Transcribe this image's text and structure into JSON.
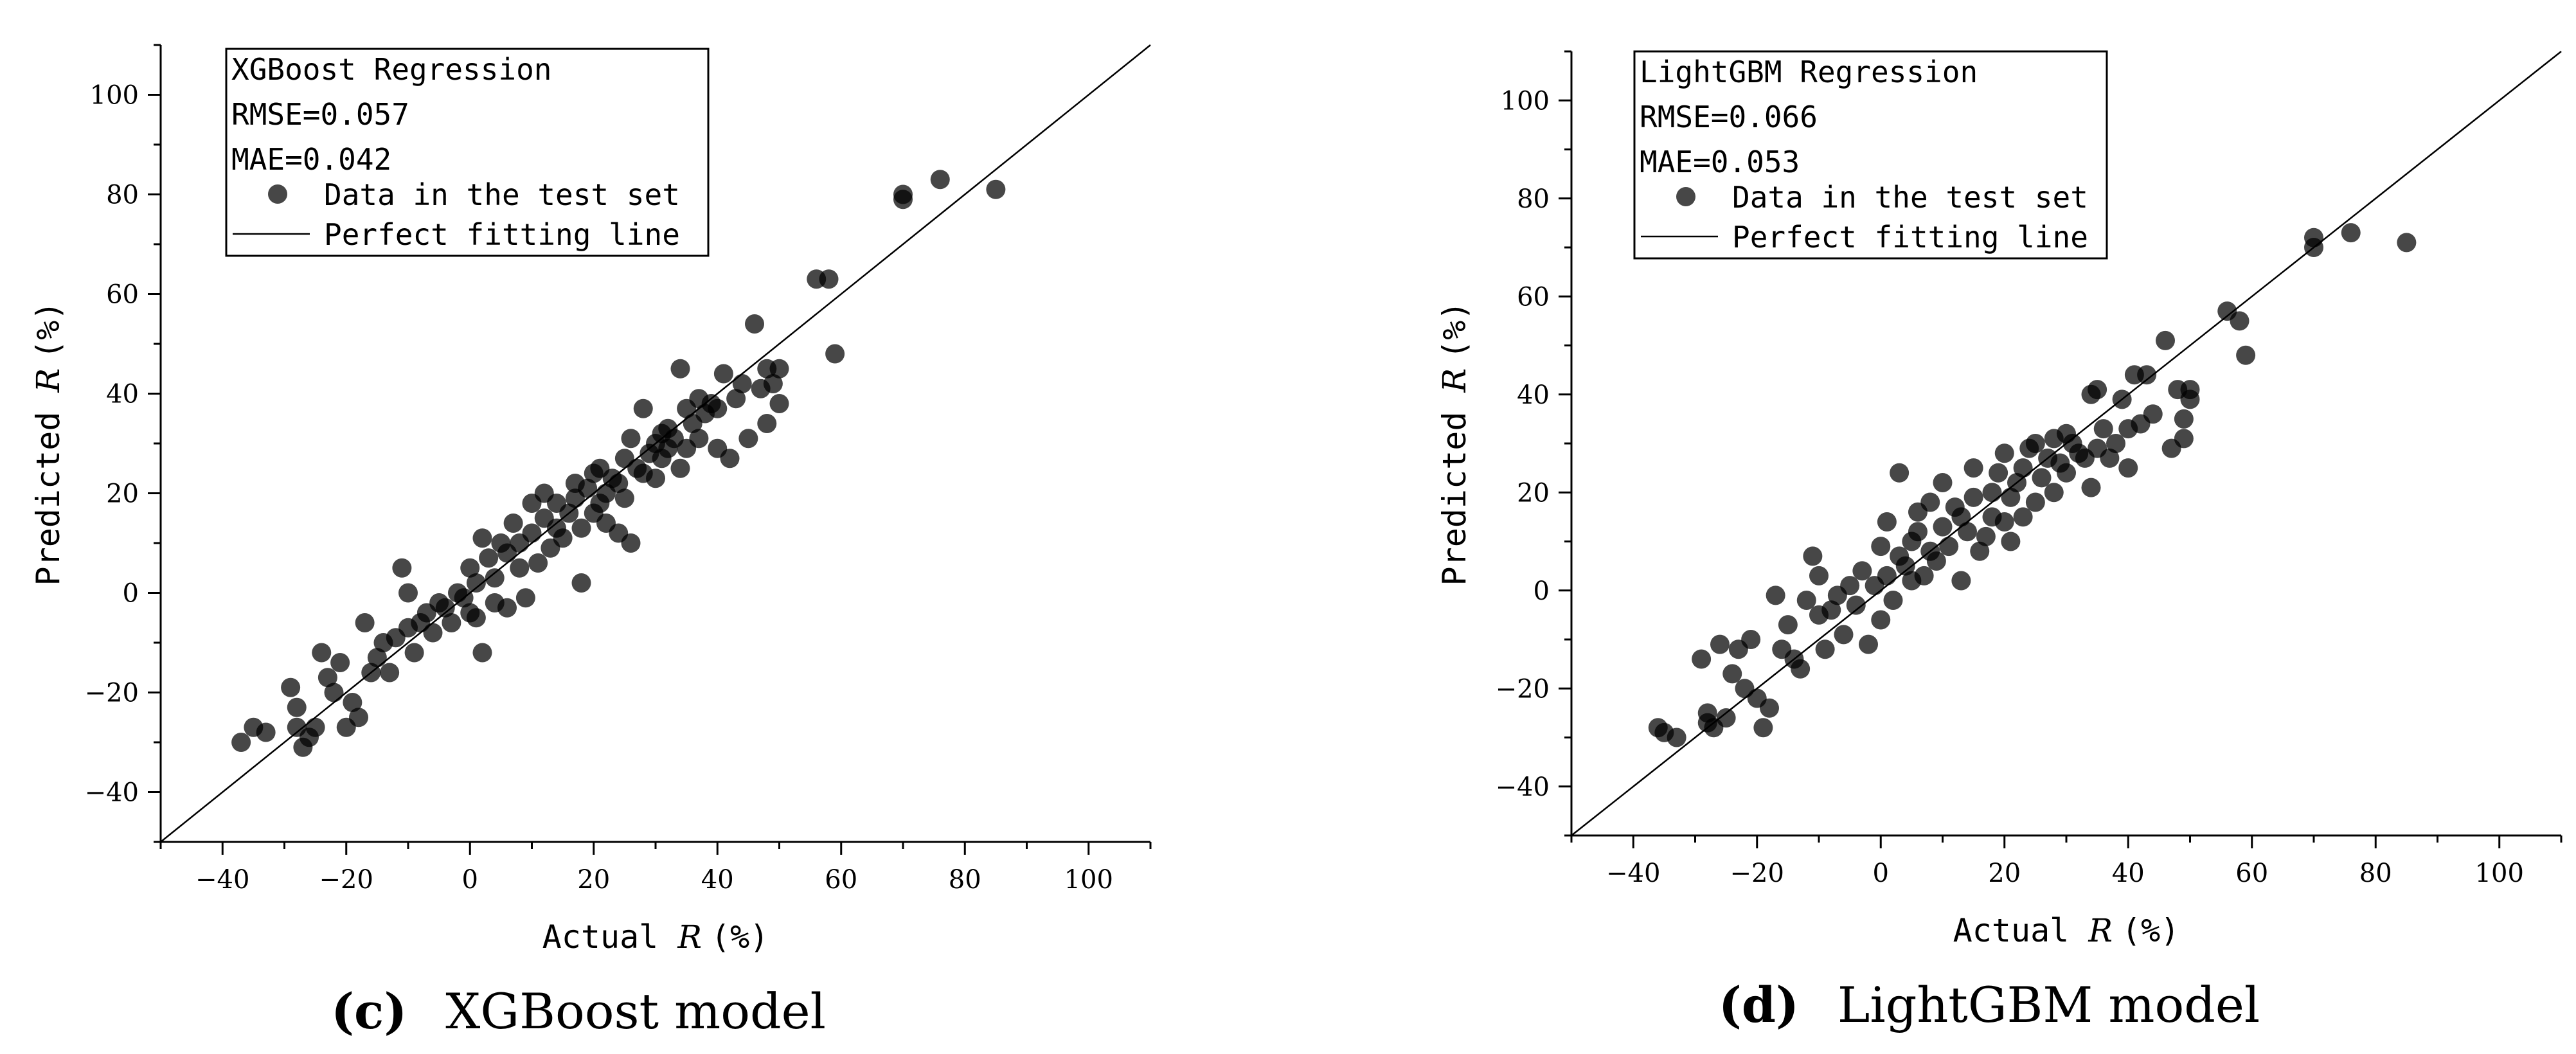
{
  "chart_data": [
    {
      "type": "scatter",
      "panel": "c",
      "caption_letter": "(c)",
      "caption_text": "XGBoost model",
      "legend": {
        "title": "XGBoost Regression",
        "rmse": "RMSE=0.057",
        "mae": "MAE=0.042",
        "points_label": "Data in the test set",
        "line_label": "Perfect fitting line"
      },
      "xlabel_prefix": "Actual",
      "xlabel_var": "R",
      "xlabel_unit": "(%)",
      "ylabel_prefix": "Predicted",
      "ylabel_var": "R",
      "ylabel_unit": "(%)",
      "xlim": [
        -50,
        110
      ],
      "ylim": [
        -50,
        110
      ],
      "xticks": [
        -40,
        -20,
        0,
        20,
        40,
        60,
        80,
        100
      ],
      "yticks": [
        -40,
        -20,
        0,
        20,
        40,
        60,
        80,
        100
      ],
      "xtick_labels": [
        "−40",
        "−20",
        "0",
        "20",
        "40",
        "60",
        "80",
        "100"
      ],
      "ytick_labels": [
        "−40",
        "−20",
        "0",
        "20",
        "40",
        "60",
        "80",
        "100"
      ],
      "point_color": "#333333",
      "points": [
        [
          -37,
          -30
        ],
        [
          -35,
          -27
        ],
        [
          -33,
          -28
        ],
        [
          -29,
          -19
        ],
        [
          -28,
          -23
        ],
        [
          -28,
          -27
        ],
        [
          -27,
          -31
        ],
        [
          -26,
          -29
        ],
        [
          -25,
          -27
        ],
        [
          -24,
          -12
        ],
        [
          -23,
          -17
        ],
        [
          -22,
          -20
        ],
        [
          -21,
          -14
        ],
        [
          -20,
          -27
        ],
        [
          -19,
          -22
        ],
        [
          -18,
          -25
        ],
        [
          -17,
          -6
        ],
        [
          -16,
          -16
        ],
        [
          -15,
          -13
        ],
        [
          -14,
          -10
        ],
        [
          -13,
          -16
        ],
        [
          -12,
          -9
        ],
        [
          -11,
          5
        ],
        [
          -10,
          -7
        ],
        [
          -10,
          0
        ],
        [
          -9,
          -12
        ],
        [
          -8,
          -6
        ],
        [
          -7,
          -4
        ],
        [
          -6,
          -8
        ],
        [
          -5,
          -2
        ],
        [
          -4,
          -3
        ],
        [
          -3,
          -6
        ],
        [
          -2,
          0
        ],
        [
          -1,
          -1
        ],
        [
          0,
          -4
        ],
        [
          0,
          5
        ],
        [
          1,
          2
        ],
        [
          1,
          -5
        ],
        [
          2,
          -12
        ],
        [
          2,
          11
        ],
        [
          3,
          7
        ],
        [
          4,
          -2
        ],
        [
          4,
          3
        ],
        [
          5,
          10
        ],
        [
          6,
          -3
        ],
        [
          6,
          8
        ],
        [
          7,
          14
        ],
        [
          8,
          5
        ],
        [
          8,
          10
        ],
        [
          9,
          -1
        ],
        [
          10,
          12
        ],
        [
          10,
          18
        ],
        [
          11,
          6
        ],
        [
          12,
          15
        ],
        [
          12,
          20
        ],
        [
          13,
          9
        ],
        [
          14,
          13
        ],
        [
          14,
          18
        ],
        [
          15,
          11
        ],
        [
          16,
          16
        ],
        [
          17,
          19
        ],
        [
          17,
          22
        ],
        [
          18,
          2
        ],
        [
          18,
          13
        ],
        [
          19,
          21
        ],
        [
          20,
          16
        ],
        [
          20,
          24
        ],
        [
          21,
          18
        ],
        [
          21,
          25
        ],
        [
          22,
          20
        ],
        [
          22,
          14
        ],
        [
          23,
          23
        ],
        [
          24,
          22
        ],
        [
          24,
          12
        ],
        [
          25,
          27
        ],
        [
          25,
          19
        ],
        [
          26,
          10
        ],
        [
          26,
          31
        ],
        [
          27,
          25
        ],
        [
          28,
          24
        ],
        [
          28,
          37
        ],
        [
          29,
          28
        ],
        [
          30,
          30
        ],
        [
          30,
          23
        ],
        [
          31,
          32
        ],
        [
          31,
          27
        ],
        [
          32,
          29
        ],
        [
          32,
          33
        ],
        [
          33,
          31
        ],
        [
          34,
          45
        ],
        [
          34,
          25
        ],
        [
          35,
          37
        ],
        [
          35,
          29
        ],
        [
          36,
          34
        ],
        [
          37,
          31
        ],
        [
          37,
          39
        ],
        [
          38,
          36
        ],
        [
          39,
          38
        ],
        [
          40,
          37
        ],
        [
          40,
          29
        ],
        [
          41,
          44
        ],
        [
          42,
          27
        ],
        [
          43,
          39
        ],
        [
          44,
          42
        ],
        [
          45,
          31
        ],
        [
          46,
          54
        ],
        [
          47,
          41
        ],
        [
          48,
          45
        ],
        [
          48,
          34
        ],
        [
          49,
          42
        ],
        [
          50,
          45
        ],
        [
          50,
          38
        ],
        [
          56,
          63
        ],
        [
          58,
          63
        ],
        [
          59,
          48
        ],
        [
          70,
          79
        ],
        [
          70,
          80
        ],
        [
          76,
          83
        ],
        [
          85,
          81
        ]
      ]
    },
    {
      "type": "scatter",
      "panel": "d",
      "caption_letter": "(d)",
      "caption_text": "LightGBM model",
      "legend": {
        "title": "LightGBM Regression",
        "rmse": "RMSE=0.066",
        "mae": "MAE=0.053",
        "points_label": "Data in the test set",
        "line_label": "Perfect fitting line"
      },
      "xlabel_prefix": "Actual",
      "xlabel_var": "R",
      "xlabel_unit": "(%)",
      "ylabel_prefix": "Predicted",
      "ylabel_var": "R",
      "ylabel_unit": "(%)",
      "xlim": [
        -50,
        110
      ],
      "ylim": [
        -50,
        110
      ],
      "xticks": [
        -40,
        -20,
        0,
        20,
        40,
        60,
        80,
        100
      ],
      "yticks": [
        -40,
        -20,
        0,
        20,
        40,
        60,
        80,
        100
      ],
      "xtick_labels": [
        "−40",
        "−20",
        "0",
        "20",
        "40",
        "60",
        "80",
        "100"
      ],
      "ytick_labels": [
        "−40",
        "−20",
        "0",
        "20",
        "40",
        "60",
        "80",
        "100"
      ],
      "point_color": "#333333",
      "points": [
        [
          -36,
          -28
        ],
        [
          -35,
          -29
        ],
        [
          -33,
          -30
        ],
        [
          -29,
          -14
        ],
        [
          -28,
          -25
        ],
        [
          -28,
          -27
        ],
        [
          -27,
          -28
        ],
        [
          -26,
          -11
        ],
        [
          -25,
          -26
        ],
        [
          -24,
          -17
        ],
        [
          -23,
          -12
        ],
        [
          -22,
          -20
        ],
        [
          -21,
          -10
        ],
        [
          -20,
          -22
        ],
        [
          -19,
          -28
        ],
        [
          -18,
          -24
        ],
        [
          -17,
          -1
        ],
        [
          -16,
          -12
        ],
        [
          -15,
          -7
        ],
        [
          -14,
          -14
        ],
        [
          -13,
          -16
        ],
        [
          -12,
          -2
        ],
        [
          -11,
          7
        ],
        [
          -10,
          -5
        ],
        [
          -10,
          3
        ],
        [
          -9,
          -12
        ],
        [
          -8,
          -4
        ],
        [
          -7,
          -1
        ],
        [
          -6,
          -9
        ],
        [
          -5,
          1
        ],
        [
          -4,
          -3
        ],
        [
          -3,
          4
        ],
        [
          -2,
          -11
        ],
        [
          -1,
          1
        ],
        [
          0,
          -6
        ],
        [
          0,
          9
        ],
        [
          1,
          3
        ],
        [
          1,
          14
        ],
        [
          2,
          -2
        ],
        [
          3,
          24
        ],
        [
          3,
          7
        ],
        [
          4,
          5
        ],
        [
          5,
          10
        ],
        [
          5,
          2
        ],
        [
          6,
          12
        ],
        [
          6,
          16
        ],
        [
          7,
          3
        ],
        [
          8,
          18
        ],
        [
          8,
          8
        ],
        [
          9,
          6
        ],
        [
          10,
          22
        ],
        [
          10,
          13
        ],
        [
          11,
          9
        ],
        [
          12,
          17
        ],
        [
          13,
          2
        ],
        [
          13,
          15
        ],
        [
          14,
          12
        ],
        [
          15,
          25
        ],
        [
          15,
          19
        ],
        [
          16,
          8
        ],
        [
          17,
          11
        ],
        [
          18,
          20
        ],
        [
          18,
          15
        ],
        [
          19,
          24
        ],
        [
          20,
          14
        ],
        [
          20,
          28
        ],
        [
          21,
          19
        ],
        [
          21,
          10
        ],
        [
          22,
          22
        ],
        [
          23,
          25
        ],
        [
          23,
          15
        ],
        [
          24,
          29
        ],
        [
          25,
          18
        ],
        [
          25,
          30
        ],
        [
          26,
          23
        ],
        [
          27,
          27
        ],
        [
          28,
          20
        ],
        [
          28,
          31
        ],
        [
          29,
          26
        ],
        [
          30,
          32
        ],
        [
          30,
          24
        ],
        [
          31,
          30
        ],
        [
          32,
          28
        ],
        [
          33,
          27
        ],
        [
          34,
          40
        ],
        [
          34,
          21
        ],
        [
          35,
          41
        ],
        [
          35,
          29
        ],
        [
          36,
          33
        ],
        [
          37,
          27
        ],
        [
          38,
          30
        ],
        [
          39,
          39
        ],
        [
          40,
          33
        ],
        [
          40,
          25
        ],
        [
          41,
          44
        ],
        [
          42,
          34
        ],
        [
          43,
          44
        ],
        [
          44,
          36
        ],
        [
          46,
          51
        ],
        [
          47,
          29
        ],
        [
          48,
          41
        ],
        [
          49,
          35
        ],
        [
          49,
          31
        ],
        [
          50,
          41
        ],
        [
          50,
          39
        ],
        [
          56,
          57
        ],
        [
          58,
          55
        ],
        [
          59,
          48
        ],
        [
          70,
          70
        ],
        [
          70,
          72
        ],
        [
          76,
          73
        ],
        [
          85,
          71
        ]
      ]
    }
  ]
}
